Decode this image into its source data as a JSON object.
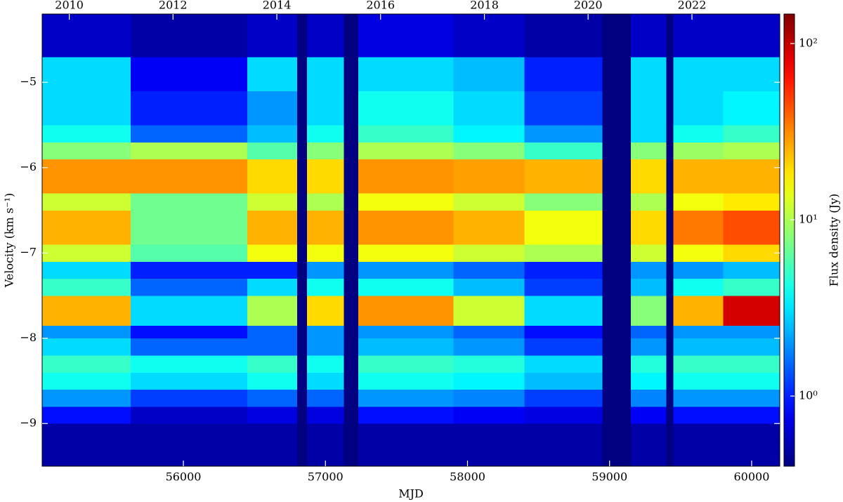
{
  "chart_data": {
    "type": "heatmap",
    "xlabel": "MJD",
    "ylabel": "Velocity (km s⁻¹)",
    "zlabel": "Flux density (Jy)",
    "colormap": "jet",
    "zscale": "log",
    "xlim": [
      55006,
      60198
    ],
    "ylim": [
      -9.5,
      -4.2
    ],
    "zlim": [
      0.4,
      147
    ],
    "xticks": [
      56000,
      57000,
      58000,
      59000,
      60000
    ],
    "x2ticks": [
      {
        "value": 55197,
        "label": "2010"
      },
      {
        "value": 55927,
        "label": "2012"
      },
      {
        "value": 56658,
        "label": "2014"
      },
      {
        "value": 57388,
        "label": "2016"
      },
      {
        "value": 58119,
        "label": "2018"
      },
      {
        "value": 58849,
        "label": "2020"
      },
      {
        "value": 59580,
        "label": "2022"
      }
    ],
    "yticks": [
      {
        "value": -9,
        "label": "−9"
      },
      {
        "value": -8,
        "label": "−8"
      },
      {
        "value": -7,
        "label": "−7"
      },
      {
        "value": -6,
        "label": "−6"
      },
      {
        "value": -5,
        "label": "−5"
      }
    ],
    "zticks": [
      {
        "value": 1,
        "label": "10⁰"
      },
      {
        "value": 10,
        "label": "10¹"
      },
      {
        "value": 100,
        "label": "10²"
      }
    ],
    "x_bins": [
      55006,
      55630,
      56450,
      56800,
      56870,
      57130,
      57230,
      57900,
      58400,
      58950,
      59150,
      59400,
      59450,
      59800,
      60198
    ],
    "y_bins": [
      -9.5,
      -9.0,
      -8.8,
      -8.6,
      -8.4,
      -8.2,
      -8.0,
      -7.85,
      -7.5,
      -7.3,
      -7.1,
      -6.9,
      -6.5,
      -6.3,
      -5.9,
      -5.7,
      -5.5,
      -5.1,
      -4.7,
      -4.2
    ],
    "z": [
      [
        0.5,
        0.9,
        2,
        4,
        5,
        3,
        2,
        25,
        5,
        3,
        12,
        25,
        12,
        30,
        8,
        4,
        3,
        3,
        0.6
      ],
      [
        0.5,
        0.6,
        1.2,
        3,
        4,
        1.5,
        0.9,
        3,
        1.5,
        1,
        6,
        7,
        7,
        30,
        10,
        1.5,
        1,
        0.8,
        0.5
      ],
      [
        0.5,
        0.7,
        1.5,
        4,
        5,
        1.5,
        1.5,
        10,
        3,
        1,
        15,
        25,
        12,
        20,
        6,
        2.5,
        2,
        3,
        0.6
      ],
      [
        0.4,
        0.4,
        0.4,
        0.4,
        0.4,
        0.4,
        0.4,
        0.4,
        0.4,
        0.4,
        0.4,
        0.4,
        0.4,
        0.4,
        0.4,
        0.4,
        0.4,
        0.4,
        0.4
      ],
      [
        0.5,
        0.7,
        1.5,
        3,
        4,
        2,
        2,
        20,
        4,
        2,
        15,
        25,
        10,
        20,
        8,
        4,
        3,
        3,
        0.6
      ],
      [
        0.4,
        0.4,
        0.4,
        0.4,
        0.4,
        0.4,
        0.4,
        0.4,
        0.4,
        0.4,
        0.4,
        0.4,
        0.4,
        0.4,
        0.4,
        0.4,
        0.4,
        0.4,
        0.4
      ],
      [
        0.5,
        0.9,
        2,
        4,
        5,
        2.5,
        2,
        30,
        4,
        2,
        15,
        30,
        15,
        30,
        10,
        5,
        4,
        3,
        0.7
      ],
      [
        0.5,
        0.8,
        1.8,
        3.5,
        4.5,
        2,
        1.5,
        12,
        2.5,
        1.5,
        12,
        25,
        12,
        28,
        8,
        3.5,
        3,
        2.5,
        0.6
      ],
      [
        0.5,
        0.7,
        1.2,
        2.5,
        3,
        1.2,
        0.9,
        3,
        1.2,
        1,
        10,
        15,
        8,
        25,
        5,
        2,
        1.2,
        1,
        0.5
      ],
      [
        0.4,
        0.4,
        0.4,
        0.4,
        0.4,
        0.4,
        0.4,
        0.4,
        0.4,
        0.4,
        0.4,
        0.4,
        0.4,
        0.4,
        0.4,
        0.4,
        0.4,
        0.4,
        0.4
      ],
      [
        0.5,
        0.8,
        1.8,
        3.5,
        4.5,
        2,
        1.5,
        8,
        2.5,
        2,
        12,
        20,
        10,
        20,
        8,
        3,
        3,
        3,
        0.6
      ],
      [
        0.4,
        0.4,
        0.4,
        0.4,
        0.4,
        0.4,
        0.4,
        0.4,
        0.4,
        0.4,
        0.4,
        0.4,
        0.4,
        0.4,
        0.4,
        0.4,
        0.4,
        0.4,
        0.4
      ],
      [
        0.5,
        0.9,
        2,
        4,
        5,
        2.5,
        2,
        25,
        4,
        2,
        15,
        35,
        15,
        25,
        9,
        4,
        3,
        3,
        0.6
      ],
      [
        0.5,
        0.9,
        2,
        4,
        5,
        2.5,
        2,
        90,
        5,
        2.5,
        20,
        45,
        18,
        25,
        10,
        5,
        3.5,
        3,
        0.6
      ]
    ]
  }
}
